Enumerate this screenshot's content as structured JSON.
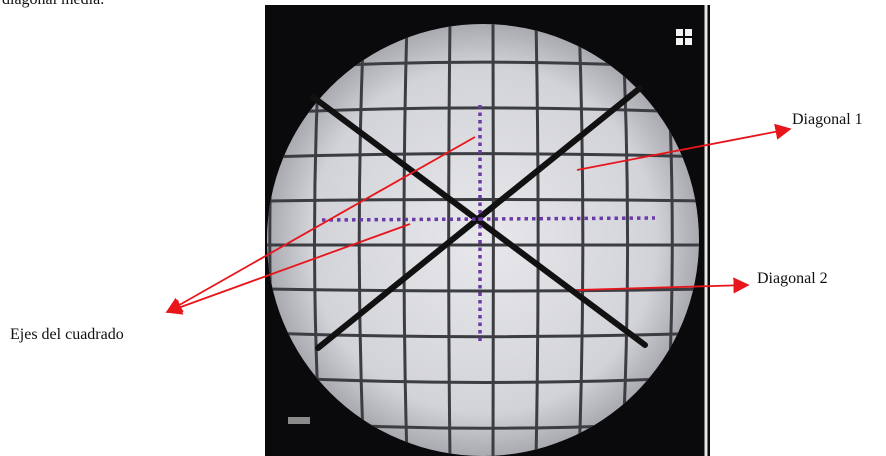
{
  "header_text": "diagonal media.",
  "labels": {
    "diagonal_1": "Diagonal 1",
    "diagonal_2": "Diagonal 2",
    "axes": "Ejes del cuadrado"
  }
}
